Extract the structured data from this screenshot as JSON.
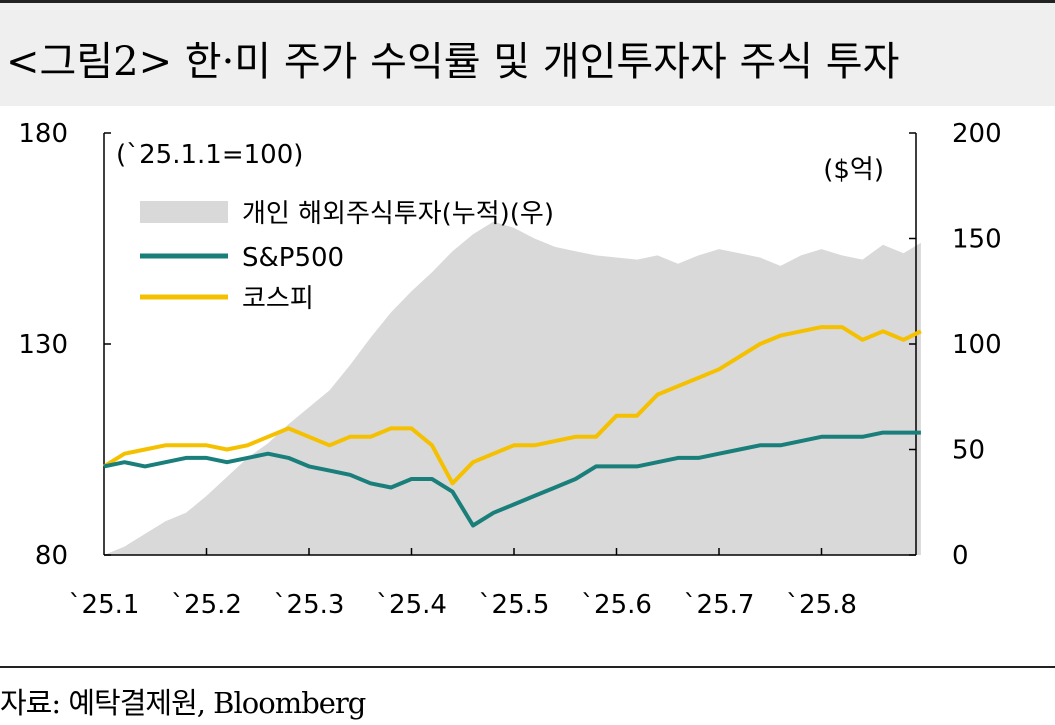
{
  "title": "<그림2> 한·미 주가 수익률 및 개인투자자 주식 투자",
  "source": "자료: 예탁결제원, Bloomberg",
  "colors": {
    "area": "#d9d9d9",
    "sp500": "#1a7f7a",
    "kospi": "#f5c000"
  },
  "chart_data": {
    "type": "line",
    "left_axis_note": "(`25.1.1=100)",
    "right_axis_note": "($억)",
    "x_tick_labels": [
      "`25.1",
      "`25.2",
      "`25.3",
      "`25.4",
      "`25.5",
      "`25.6",
      "`25.7",
      "`25.8"
    ],
    "y_left": {
      "range": [
        80,
        180
      ],
      "ticks": [
        80,
        130,
        180
      ]
    },
    "y_right": {
      "range": [
        0,
        200
      ],
      "ticks": [
        0,
        50,
        100,
        150,
        200
      ]
    },
    "legend": {
      "placement": "top-left"
    },
    "series": [
      {
        "name": "개인 해외주식투자(누적)(우)",
        "kind": "area",
        "axis": "right",
        "x": [
          0,
          0.2,
          0.4,
          0.6,
          0.8,
          1.0,
          1.2,
          1.4,
          1.6,
          1.8,
          2.0,
          2.2,
          2.4,
          2.6,
          2.8,
          3.0,
          3.2,
          3.4,
          3.6,
          3.8,
          4.0,
          4.2,
          4.4,
          4.6,
          4.8,
          5.0,
          5.2,
          5.4,
          5.6,
          5.8,
          6.0,
          6.2,
          6.4,
          6.6,
          6.8,
          7.0,
          7.2,
          7.4,
          7.6,
          7.8,
          7.97
        ],
        "values": [
          0,
          4,
          10,
          16,
          20,
          28,
          37,
          46,
          53,
          62,
          70,
          78,
          90,
          103,
          115,
          125,
          134,
          144,
          152,
          158,
          155,
          150,
          146,
          144,
          142,
          141,
          140,
          142,
          138,
          142,
          145,
          143,
          141,
          137,
          142,
          145,
          142,
          140,
          147,
          143,
          148
        ]
      },
      {
        "name": "S&P500",
        "kind": "line",
        "axis": "left",
        "x": [
          0,
          0.2,
          0.4,
          0.6,
          0.8,
          1.0,
          1.2,
          1.4,
          1.6,
          1.8,
          2.0,
          2.2,
          2.4,
          2.6,
          2.8,
          3.0,
          3.2,
          3.4,
          3.6,
          3.8,
          4.0,
          4.2,
          4.4,
          4.6,
          4.8,
          5.0,
          5.2,
          5.4,
          5.6,
          5.8,
          6.0,
          6.2,
          6.4,
          6.6,
          6.8,
          7.0,
          7.2,
          7.4,
          7.6,
          7.8,
          7.97
        ],
        "values": [
          101,
          102,
          101,
          102,
          103,
          103,
          102,
          103,
          104,
          103,
          101,
          100,
          99,
          97,
          96,
          98,
          98,
          95,
          87,
          90,
          92,
          94,
          96,
          98,
          101,
          101,
          101,
          102,
          103,
          103,
          104,
          105,
          106,
          106,
          107,
          108,
          108,
          108,
          109,
          109,
          109
        ]
      },
      {
        "name": "코스피",
        "kind": "line",
        "axis": "left",
        "x": [
          0,
          0.2,
          0.4,
          0.6,
          0.8,
          1.0,
          1.2,
          1.4,
          1.6,
          1.8,
          2.0,
          2.2,
          2.4,
          2.6,
          2.8,
          3.0,
          3.2,
          3.4,
          3.6,
          3.8,
          4.0,
          4.2,
          4.4,
          4.6,
          4.8,
          5.0,
          5.2,
          5.4,
          5.6,
          5.8,
          6.0,
          6.2,
          6.4,
          6.6,
          6.8,
          7.0,
          7.2,
          7.4,
          7.6,
          7.8,
          7.97
        ],
        "values": [
          101,
          104,
          105,
          106,
          106,
          106,
          105,
          106,
          108,
          110,
          108,
          106,
          108,
          108,
          110,
          110,
          106,
          97,
          102,
          104,
          106,
          106,
          107,
          108,
          108,
          113,
          113,
          118,
          120,
          122,
          124,
          127,
          130,
          132,
          133,
          134,
          134,
          131,
          133,
          131,
          133
        ]
      }
    ]
  }
}
